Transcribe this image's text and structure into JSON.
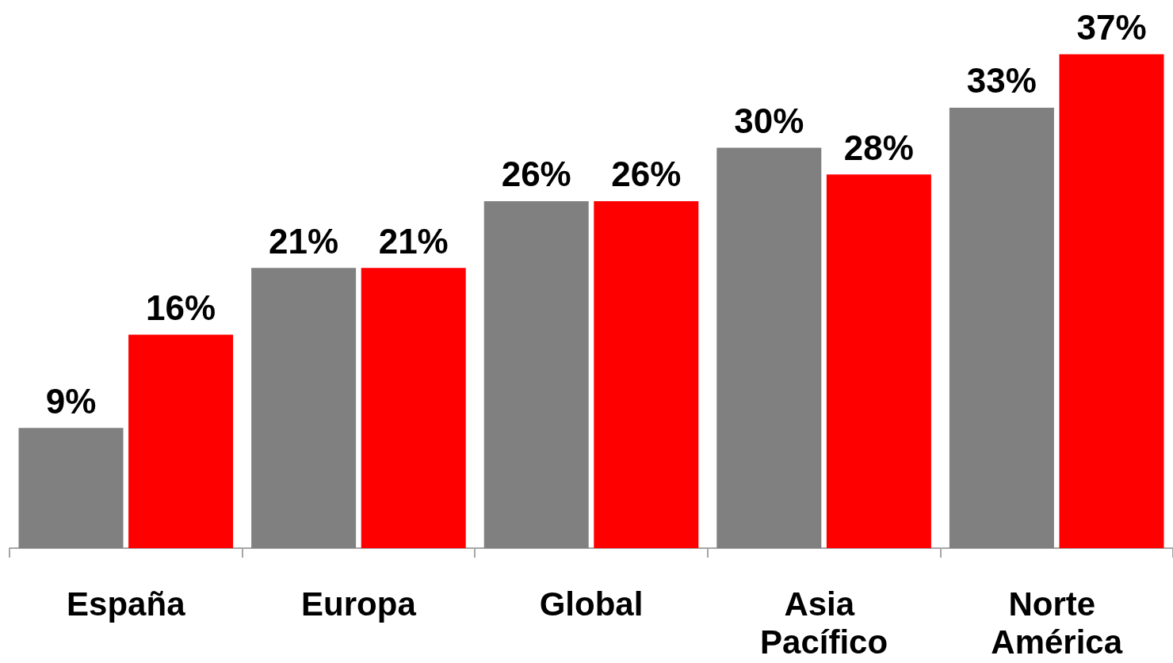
{
  "chart_data": {
    "type": "bar",
    "categories": [
      "España",
      "Europa",
      "Global",
      "Asia Pacífico",
      "Norte América"
    ],
    "series": [
      {
        "color": "#808080",
        "values": [
          9,
          21,
          26,
          30,
          33
        ],
        "value_labels": [
          "9%",
          "21%",
          "26%",
          "30%",
          "33%"
        ]
      },
      {
        "color": "#ff0000",
        "values": [
          16,
          21,
          26,
          28,
          37
        ],
        "value_labels": [
          "16%",
          "21%",
          "26%",
          "28%",
          "37%"
        ]
      }
    ],
    "grid": false,
    "tick_labels": "x"
  }
}
